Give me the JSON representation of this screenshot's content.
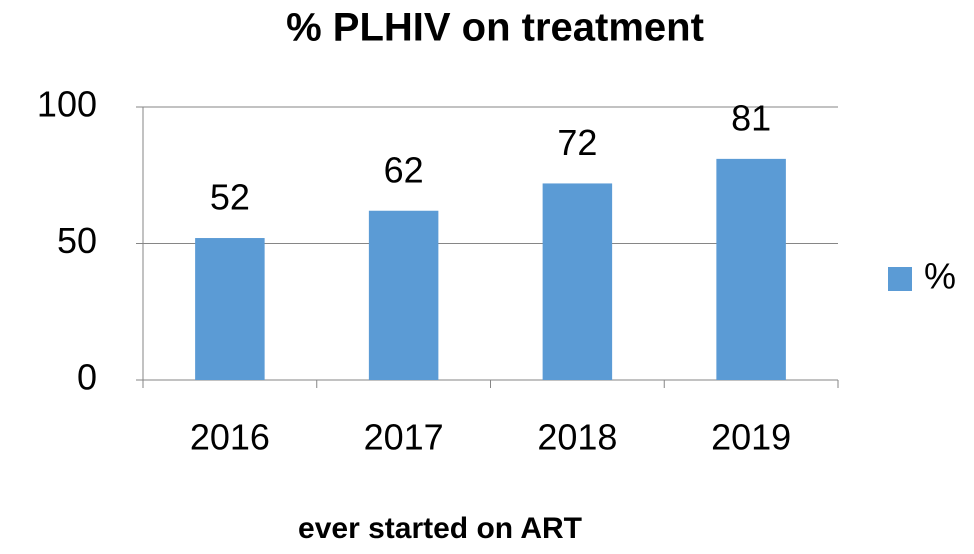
{
  "chart_data": {
    "type": "bar",
    "title": "% PLHIV on treatment",
    "x_label": "ever started on ART",
    "categories": [
      "2016",
      "2017",
      "2018",
      "2019"
    ],
    "series": [
      {
        "name": "%",
        "color": "#5b9bd5",
        "values": [
          52,
          62,
          72,
          81
        ]
      }
    ],
    "ylim": [
      0,
      100
    ],
    "yticks": [
      0,
      50,
      100
    ],
    "grid": true,
    "legend": "right"
  }
}
